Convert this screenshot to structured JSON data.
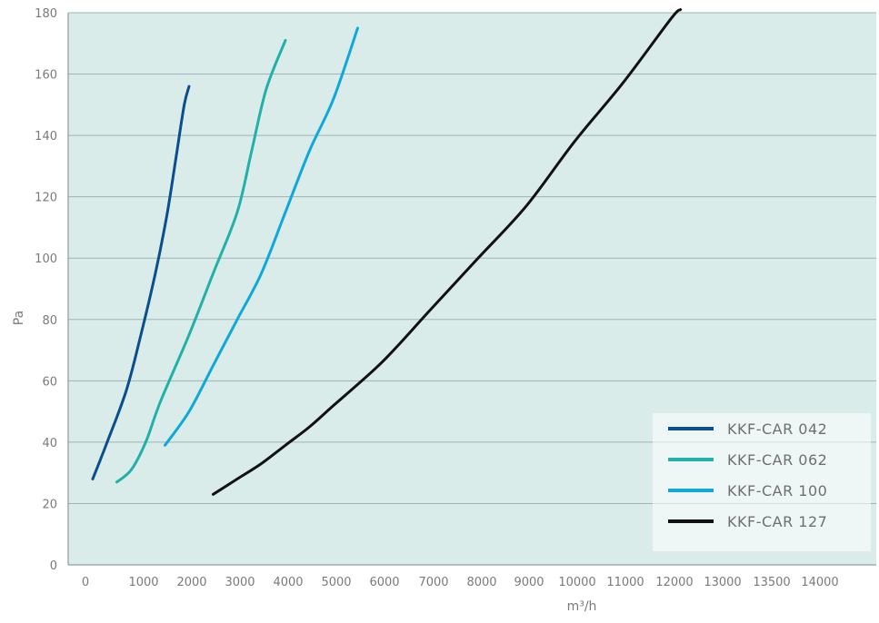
{
  "chart_data": {
    "type": "line",
    "xlabel": "m³/h",
    "ylabel": "Pa",
    "xlim": [
      0,
      15000
    ],
    "ylim": [
      0,
      180
    ],
    "x_ticks": [
      0,
      1000,
      2000,
      3000,
      4000,
      5000,
      6000,
      7000,
      8000,
      9000,
      10000,
      11000,
      12000,
      13000,
      13500,
      14000
    ],
    "y_ticks": [
      0,
      20,
      40,
      60,
      80,
      100,
      120,
      140,
      160,
      180
    ],
    "grid": "horizontal",
    "legend_position": "bottom-right",
    "colors": {
      "plot_background": "#d9ecea",
      "grid": "#9fb3b6",
      "axis": "#7a8a8c"
    },
    "series": [
      {
        "name": "KKF-CAR 042",
        "color": "#0a4f8c",
        "points": [
          [
            1000,
            28
          ],
          [
            1300,
            40
          ],
          [
            1700,
            57
          ],
          [
            2000,
            75
          ],
          [
            2300,
            95
          ],
          [
            2550,
            115
          ],
          [
            2750,
            135
          ],
          [
            2900,
            150
          ],
          [
            3000,
            156
          ]
        ]
      },
      {
        "name": "KKF-CAR 062",
        "color": "#23b0a8",
        "points": [
          [
            1500,
            27
          ],
          [
            1800,
            31
          ],
          [
            2100,
            40
          ],
          [
            2400,
            53
          ],
          [
            3000,
            75
          ],
          [
            3500,
            95
          ],
          [
            4000,
            115
          ],
          [
            4300,
            135
          ],
          [
            4600,
            155
          ],
          [
            5000,
            171
          ]
        ]
      },
      {
        "name": "KKF-CAR 100",
        "color": "#0fa8d8",
        "points": [
          [
            2500,
            39
          ],
          [
            3000,
            50
          ],
          [
            3500,
            65
          ],
          [
            4000,
            80
          ],
          [
            4500,
            95
          ],
          [
            5000,
            115
          ],
          [
            5500,
            135
          ],
          [
            6000,
            152
          ],
          [
            6500,
            175
          ]
        ]
      },
      {
        "name": "KKF-CAR 127",
        "color": "#111111",
        "points": [
          [
            3500,
            23
          ],
          [
            4000,
            28
          ],
          [
            4500,
            33
          ],
          [
            5000,
            39
          ],
          [
            5500,
            45
          ],
          [
            6000,
            52
          ],
          [
            7000,
            66
          ],
          [
            8000,
            83
          ],
          [
            9000,
            100
          ],
          [
            10000,
            117
          ],
          [
            11000,
            138
          ],
          [
            12000,
            157
          ],
          [
            13000,
            178
          ],
          [
            13200,
            181
          ]
        ]
      }
    ]
  }
}
